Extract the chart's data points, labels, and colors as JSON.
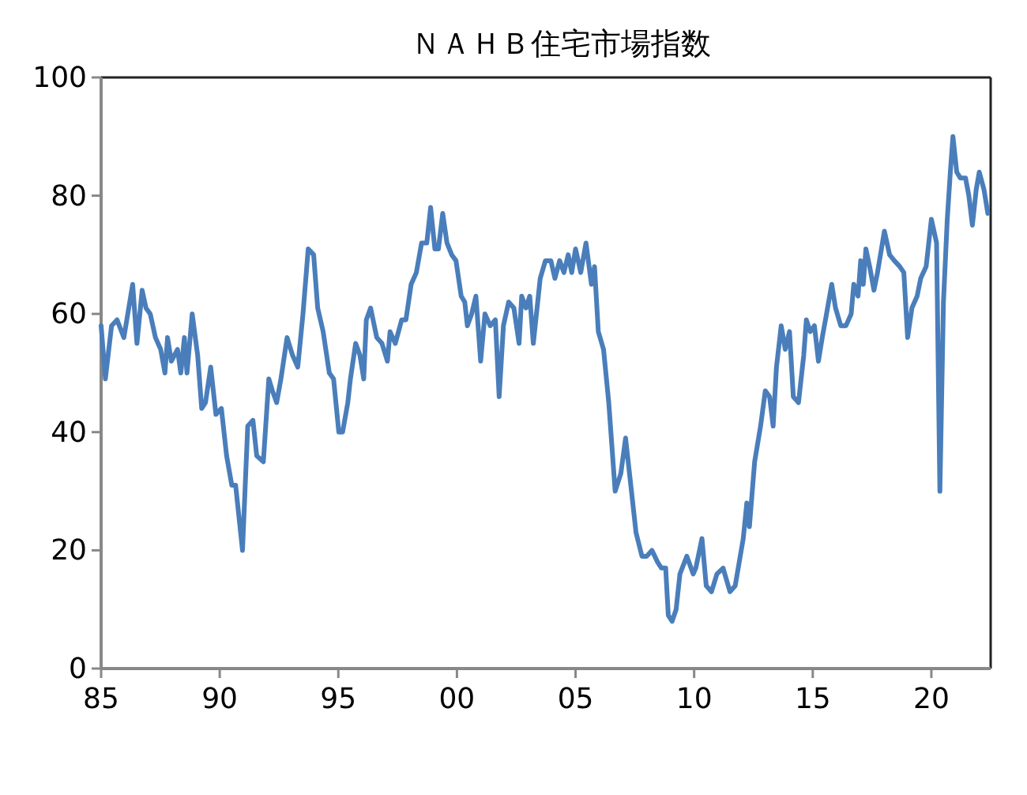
{
  "chart_data": {
    "type": "line",
    "title": "ＮＡＨＢ住宅市場指数",
    "color": "#4a7ebb",
    "xlim": [
      1985,
      2022.5
    ],
    "ylim": [
      0,
      100
    ],
    "xticks": [
      {
        "value": 1985,
        "label": "85"
      },
      {
        "value": 1990,
        "label": "90"
      },
      {
        "value": 1995,
        "label": "95"
      },
      {
        "value": 2000,
        "label": "00"
      },
      {
        "value": 2005,
        "label": "05"
      },
      {
        "value": 2010,
        "label": "10"
      },
      {
        "value": 2015,
        "label": "15"
      },
      {
        "value": 2020,
        "label": "20"
      }
    ],
    "yticks": [
      0,
      20,
      40,
      60,
      80,
      100
    ],
    "x": [
      1985.0,
      1985.18,
      1985.44,
      1985.67,
      1985.96,
      1986.33,
      1986.51,
      1986.73,
      1986.89,
      1987.07,
      1987.29,
      1987.51,
      1987.69,
      1987.8,
      1987.96,
      1988.22,
      1988.36,
      1988.51,
      1988.62,
      1988.84,
      1989.07,
      1989.24,
      1989.4,
      1989.62,
      1989.84,
      1990.07,
      1990.29,
      1990.51,
      1990.67,
      1990.96,
      1991.18,
      1991.4,
      1991.56,
      1991.84,
      1992.07,
      1992.22,
      1992.4,
      1992.58,
      1992.84,
      1993.07,
      1993.29,
      1993.51,
      1993.73,
      1993.96,
      1994.13,
      1994.36,
      1994.62,
      1994.8,
      1995.02,
      1995.18,
      1995.4,
      1995.51,
      1995.73,
      1995.91,
      1996.07,
      1996.18,
      1996.36,
      1996.62,
      1996.84,
      1997.07,
      1997.18,
      1997.4,
      1997.67,
      1997.85,
      1998.07,
      1998.29,
      1998.51,
      1998.73,
      1998.89,
      1999.07,
      1999.22,
      1999.4,
      1999.58,
      1999.78,
      1999.96,
      2000.18,
      2000.33,
      2000.44,
      2000.62,
      2000.8,
      2001.0,
      2001.18,
      2001.4,
      2001.62,
      2001.78,
      2001.96,
      2002.18,
      2002.4,
      2002.62,
      2002.73,
      2002.91,
      2003.07,
      2003.22,
      2003.51,
      2003.73,
      2003.96,
      2004.13,
      2004.33,
      2004.51,
      2004.69,
      2004.84,
      2005.0,
      2005.22,
      2005.44,
      2005.67,
      2005.8,
      2005.96,
      2006.18,
      2006.4,
      2006.67,
      2006.91,
      2007.11,
      2007.33,
      2007.55,
      2007.8,
      2008.0,
      2008.22,
      2008.46,
      2008.62,
      2008.8,
      2008.91,
      2009.07,
      2009.24,
      2009.4,
      2009.69,
      2009.96,
      2010.07,
      2010.33,
      2010.51,
      2010.73,
      2010.96,
      2011.22,
      2011.51,
      2011.73,
      2012.07,
      2012.22,
      2012.33,
      2012.55,
      2012.8,
      2013.0,
      2013.18,
      2013.33,
      2013.47,
      2013.67,
      2013.84,
      2014.02,
      2014.18,
      2014.4,
      2014.62,
      2014.73,
      2014.89,
      2015.07,
      2015.24,
      2015.4,
      2015.58,
      2015.8,
      2015.96,
      2016.18,
      2016.4,
      2016.62,
      2016.73,
      2016.91,
      2017.02,
      2017.13,
      2017.24,
      2017.4,
      2017.58,
      2017.73,
      2018.02,
      2018.24,
      2018.44,
      2018.67,
      2018.84,
      2019.0,
      2019.18,
      2019.4,
      2019.55,
      2019.78,
      2020.0,
      2020.22,
      2020.36,
      2020.51,
      2020.67,
      2020.8,
      2020.91,
      2021.07,
      2021.22,
      2021.44,
      2021.58,
      2021.73,
      2021.89,
      2022.02,
      2022.22,
      2022.38
    ],
    "values": [
      58,
      49,
      58,
      59,
      56,
      65,
      55,
      64,
      61,
      60,
      56,
      54,
      50,
      56,
      52,
      54,
      50,
      56,
      50,
      60,
      53,
      44,
      45,
      51,
      43,
      44,
      36,
      31,
      31,
      20,
      41,
      42,
      36,
      35,
      49,
      47,
      45,
      49,
      56,
      53,
      51,
      60,
      71,
      70,
      61,
      57,
      50,
      49,
      40,
      40,
      45,
      49,
      55,
      53,
      49,
      59,
      61,
      56,
      55,
      52,
      57,
      55,
      59,
      59,
      65,
      67,
      72,
      72,
      78,
      71,
      71,
      77,
      72,
      70,
      69,
      63,
      62,
      58,
      60,
      63,
      52,
      60,
      58,
      59,
      46,
      58,
      62,
      61,
      55,
      63,
      61,
      63,
      55,
      66,
      69,
      69,
      66,
      69,
      67,
      70,
      67,
      71,
      67,
      72,
      65,
      68,
      57,
      54,
      45,
      30,
      33,
      39,
      31,
      23,
      19,
      19,
      20,
      18,
      17,
      17,
      9,
      8,
      10,
      16,
      19,
      16,
      17,
      22,
      14,
      13,
      16,
      17,
      13,
      14,
      22,
      28,
      24,
      35,
      41,
      47,
      46,
      41,
      51,
      58,
      54,
      57,
      46,
      45,
      53,
      59,
      57,
      58,
      52,
      56,
      60,
      65,
      61,
      58,
      58,
      60,
      65,
      63,
      69,
      65,
      71,
      68,
      64,
      67,
      74,
      70,
      69,
      68,
      67,
      56,
      61,
      63,
      66,
      68,
      76,
      72,
      30,
      62,
      76,
      84,
      90,
      84,
      83,
      83,
      80,
      75,
      81,
      84,
      81,
      77
    ]
  }
}
